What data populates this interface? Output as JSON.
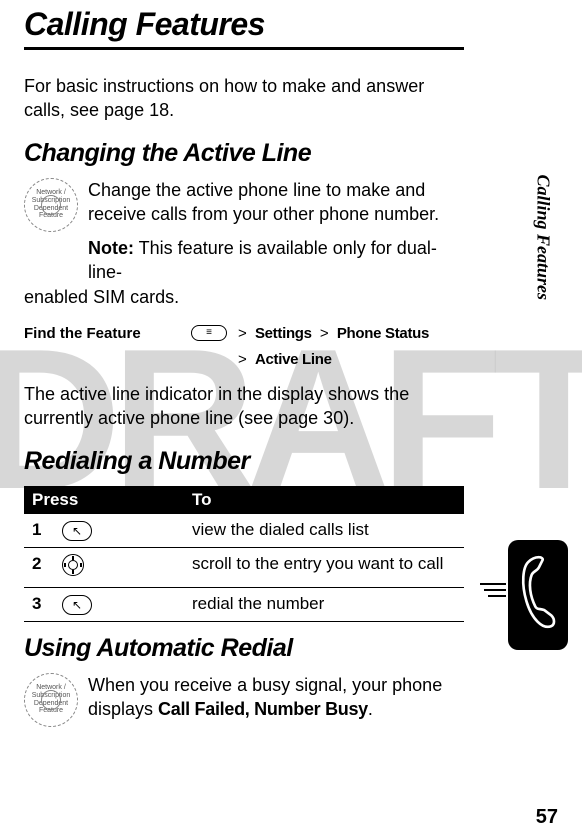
{
  "watermark_text": "DRAFT",
  "page_number": "57",
  "side_label": "Calling Features",
  "main_title": "Calling Features",
  "intro": "For basic instructions on how to make and answer calls, see page 18.",
  "section1": {
    "title": "Changing the Active Line",
    "badge_text": "Network / Subscription Dependent Feature",
    "para1": "Change the active phone line to make and receive calls from your other phone number.",
    "note_label": "Note:",
    "note_text": " This feature is available only for dual-line-enabled SIM cards.",
    "find_label": "Find the Feature",
    "path_line1_a": "Settings",
    "path_line1_b": "Phone Status",
    "path_line2": "Active Line",
    "gt": ">",
    "after": "The active line indicator in the display shows the currently active phone line (see page 30)."
  },
  "section2": {
    "title": "Redialing a Number",
    "table": {
      "head_press": "Press",
      "head_to": "To",
      "rows": [
        {
          "n": "1",
          "key_type": "send",
          "to": "view the dialed calls list"
        },
        {
          "n": "2",
          "key_type": "nav",
          "to": "scroll to the entry you want to call"
        },
        {
          "n": "3",
          "key_type": "send",
          "to": "redial the number"
        }
      ]
    }
  },
  "section3": {
    "title": "Using Automatic Redial",
    "badge_text": "Network / Subscription Dependent Feature",
    "text_before": "When you receive a busy signal, your phone displays ",
    "ui_text": "Call Failed, Number Busy",
    "text_after": "."
  }
}
